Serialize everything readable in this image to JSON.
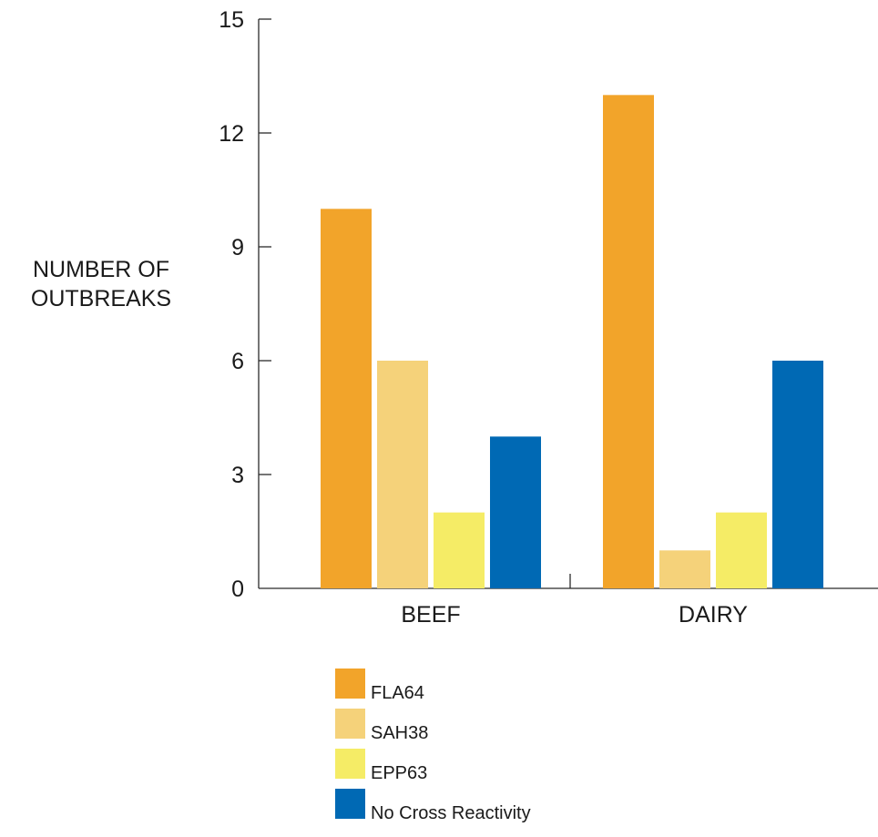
{
  "chart_data": {
    "type": "bar",
    "categories": [
      "BEEF",
      "DAIRY"
    ],
    "series": [
      {
        "name": "FLA64",
        "values": [
          10,
          13
        ],
        "color": "#F2A42A"
      },
      {
        "name": "SAH38",
        "values": [
          6,
          1
        ],
        "color": "#F5D27A"
      },
      {
        "name": "EPP63",
        "values": [
          2,
          2
        ],
        "color": "#F5EC66"
      },
      {
        "name": "No Cross Reactivity",
        "values": [
          4,
          6
        ],
        "color": "#0069B4"
      }
    ],
    "ylabel": [
      "NUMBER OF",
      "OUTBREAKS"
    ],
    "xlabel": "",
    "ylim": [
      0,
      15
    ],
    "yticks": [
      0,
      3,
      6,
      9,
      12,
      15
    ],
    "grid": false,
    "legend_position": "bottom"
  }
}
